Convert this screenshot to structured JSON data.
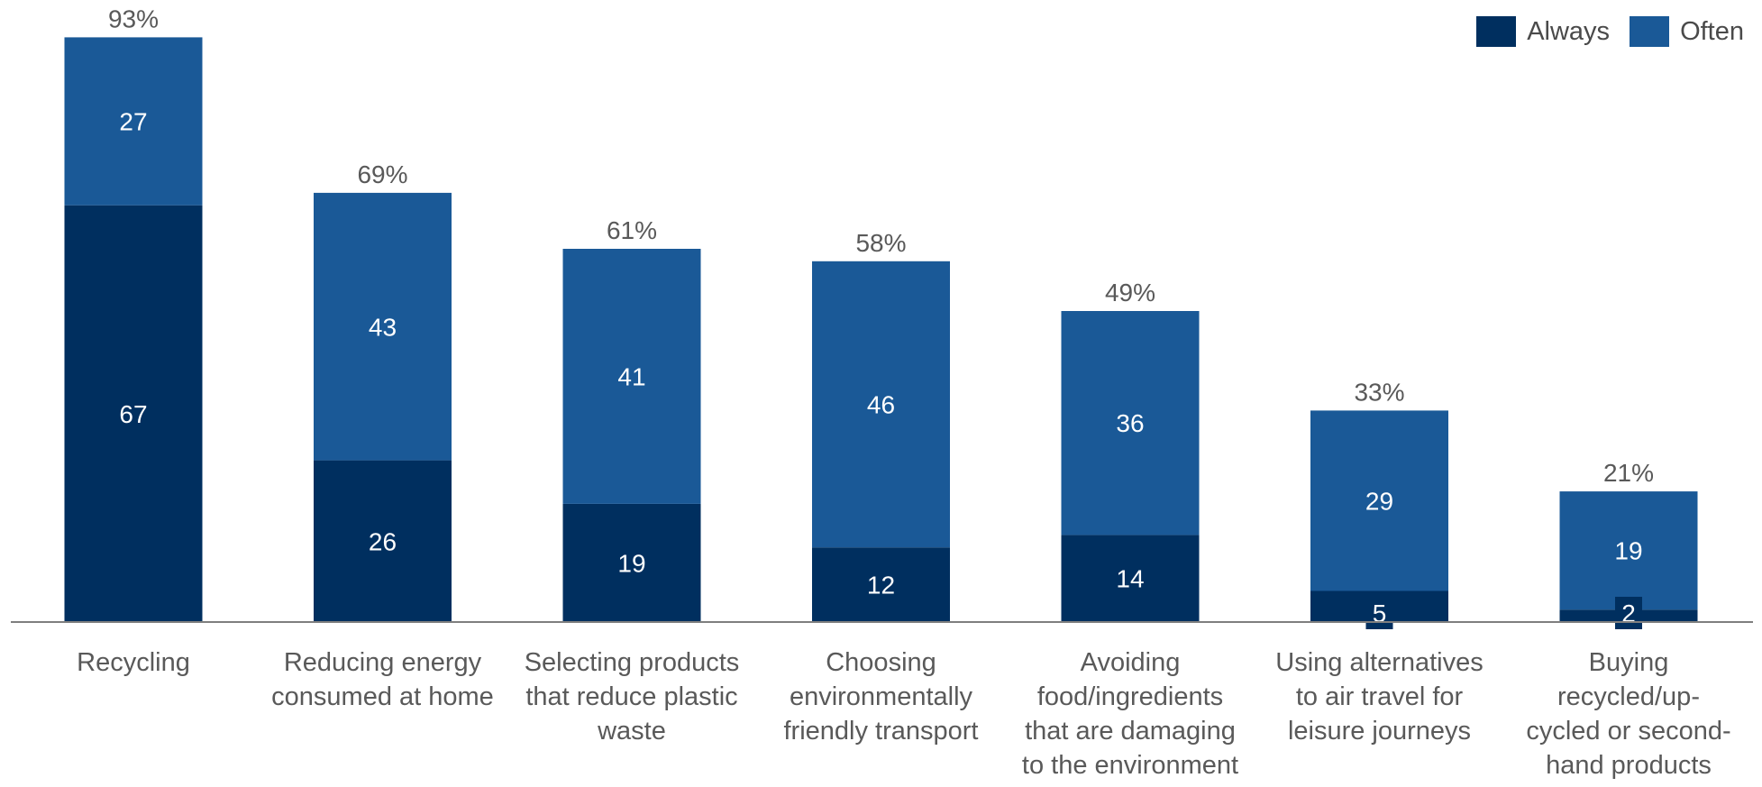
{
  "colors": {
    "always": "#002f5f",
    "often": "#1a5997",
    "axis": "#7f7f7f",
    "label_text": "#595959",
    "bar_text": "#ffffff"
  },
  "legend": {
    "always_label": "Always",
    "often_label": "Often"
  },
  "chart_data": {
    "type": "bar",
    "stacked": true,
    "categories": [
      [
        "Recycling"
      ],
      [
        "Reducing energy",
        "consumed at home"
      ],
      [
        "Selecting products",
        "that reduce plastic",
        "waste"
      ],
      [
        "Choosing",
        "environmentally",
        "friendly transport"
      ],
      [
        "Avoiding",
        "food/ingredients",
        "that are damaging",
        "to the environment"
      ],
      [
        "Using alternatives",
        "to air travel for",
        "leisure journeys"
      ],
      [
        "Buying",
        "recycled/up-",
        "cycled or second-",
        "hand products"
      ]
    ],
    "series": [
      {
        "name": "Always",
        "values": [
          67,
          26,
          19,
          12,
          14,
          5,
          2
        ]
      },
      {
        "name": "Often",
        "values": [
          27,
          43,
          41,
          46,
          36,
          29,
          19
        ]
      }
    ],
    "totals": [
      "93%",
      "69%",
      "61%",
      "58%",
      "49%",
      "33%",
      "21%"
    ],
    "ylim": [
      0,
      100
    ],
    "grid": false,
    "legend_position": "top-right"
  }
}
